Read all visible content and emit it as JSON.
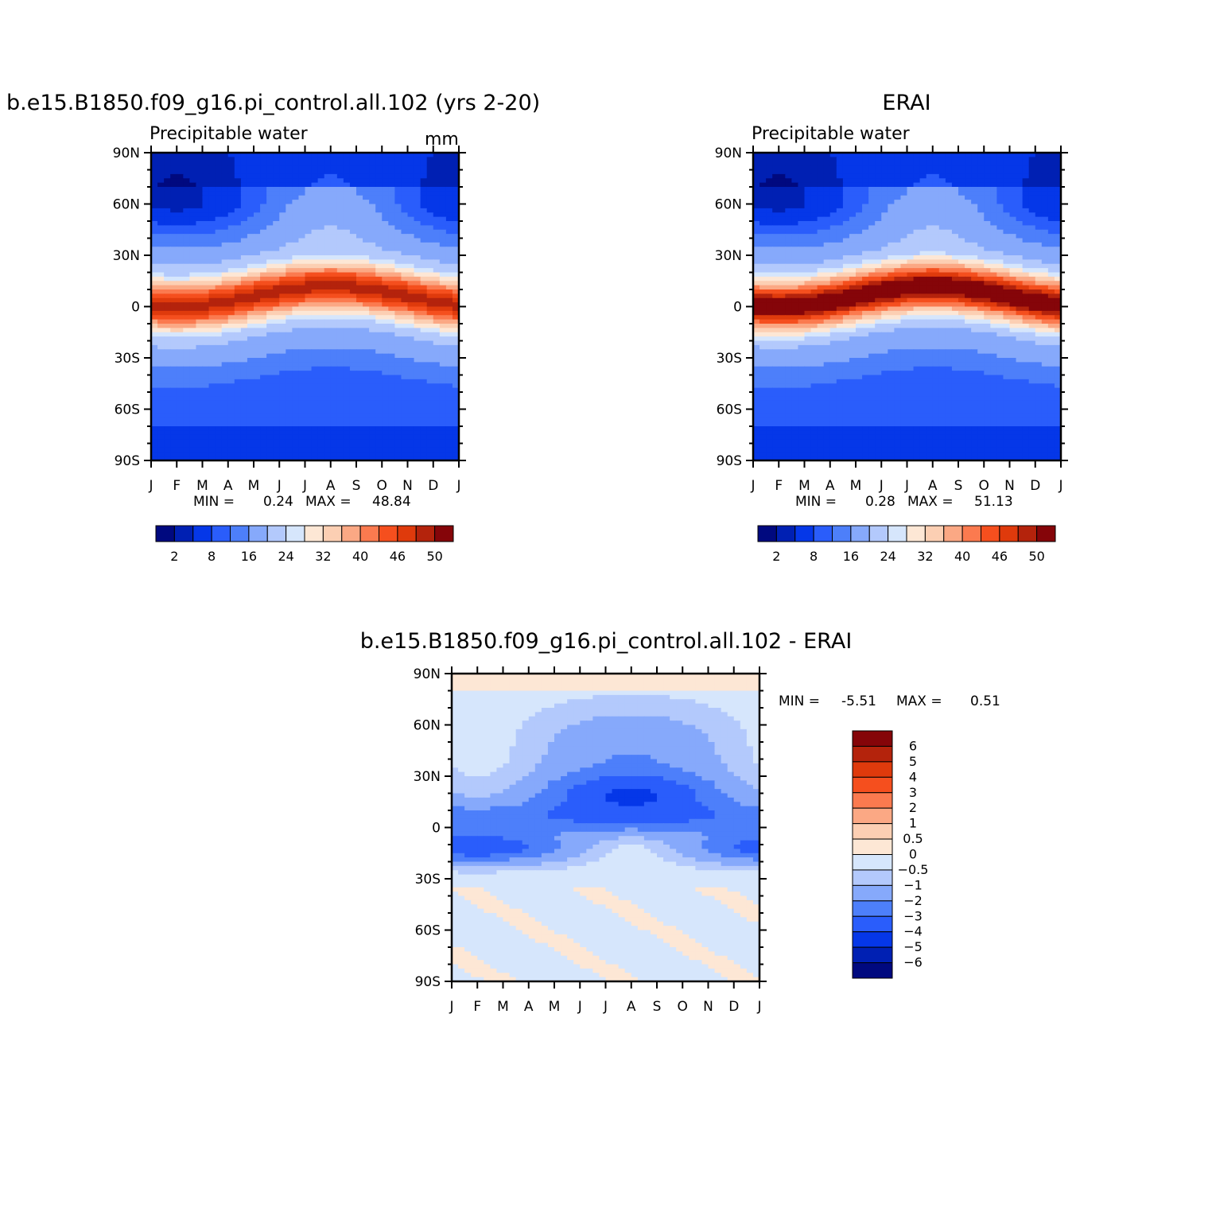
{
  "chart_data": [
    {
      "type": "heatmap",
      "title": "b.e15.B1850.f09_g16.pi_control.all.102 (yrs 2-20)",
      "subtitle": "Precipitable water",
      "units": "mm",
      "x_ticks": [
        "J",
        "F",
        "M",
        "A",
        "M",
        "J",
        "J",
        "A",
        "S",
        "O",
        "N",
        "D",
        "J"
      ],
      "y_ticks": [
        "90N",
        "60N",
        "30N",
        "0",
        "30S",
        "60S",
        "90S"
      ],
      "ylim": [
        -90,
        90
      ],
      "stats": {
        "min_label": "MIN =",
        "min": "0.24",
        "max_label": "MAX =",
        "max": "48.84"
      },
      "colorbar": {
        "levels": [
          "2",
          "8",
          "16",
          "24",
          "32",
          "40",
          "46",
          "50"
        ],
        "colors": [
          "#00097f",
          "#0020b3",
          "#0537e8",
          "#2a5dfb",
          "#4d7ffa",
          "#86a9fb",
          "#b3c9fc",
          "#d6e6fc",
          "#fde7d5",
          "#fccfb3",
          "#fba884",
          "#fb7a4f",
          "#f54f1e",
          "#df3a0c",
          "#b4230c",
          "#850509"
        ]
      },
      "field": {
        "equator_max_mm": 48.84,
        "ns_min_mm": 0.24,
        "itcz_peak_month": "Aug",
        "itcz_peak_lat": 10
      }
    },
    {
      "type": "heatmap",
      "title": "ERAI",
      "subtitle": "Precipitable water",
      "x_ticks": [
        "J",
        "F",
        "M",
        "A",
        "M",
        "J",
        "J",
        "A",
        "S",
        "O",
        "N",
        "D",
        "J"
      ],
      "y_ticks": [
        "90N",
        "60N",
        "30N",
        "0",
        "30S",
        "60S",
        "90S"
      ],
      "ylim": [
        -90,
        90
      ],
      "stats": {
        "min_label": "MIN =",
        "min": "0.28",
        "max_label": "MAX =",
        "max": "51.13"
      },
      "colorbar": {
        "levels": [
          "2",
          "8",
          "16",
          "24",
          "32",
          "40",
          "46",
          "50"
        ],
        "colors": [
          "#00097f",
          "#0020b3",
          "#0537e8",
          "#2a5dfb",
          "#4d7ffa",
          "#86a9fb",
          "#b3c9fc",
          "#d6e6fc",
          "#fde7d5",
          "#fccfb3",
          "#fba884",
          "#fb7a4f",
          "#f54f1e",
          "#df3a0c",
          "#b4230c",
          "#850509"
        ]
      },
      "field": {
        "equator_max_mm": 51.13,
        "ns_min_mm": 0.28,
        "itcz_peak_month": "Aug",
        "itcz_peak_lat": 10
      }
    },
    {
      "type": "heatmap",
      "title": "b.e15.B1850.f09_g16.pi_control.all.102 - ERAI",
      "x_ticks": [
        "J",
        "F",
        "M",
        "A",
        "M",
        "J",
        "J",
        "A",
        "S",
        "O",
        "N",
        "D",
        "J"
      ],
      "y_ticks": [
        "90N",
        "60N",
        "30N",
        "0",
        "30S",
        "60S",
        "90S"
      ],
      "ylim": [
        -90,
        90
      ],
      "stats": {
        "min_label": "MIN =",
        "min": "-5.51",
        "max_label": "MAX =",
        "max": "0.51"
      },
      "colorbar": {
        "levels": [
          "6",
          "5",
          "4",
          "3",
          "2",
          "1",
          "0.5",
          "0",
          "-0.5",
          "-1",
          "-2",
          "-3",
          "-4",
          "-5",
          "-6"
        ],
        "colors": [
          "#850509",
          "#b4230c",
          "#df3a0c",
          "#f54f1e",
          "#fb7a4f",
          "#fba884",
          "#fccfb3",
          "#fde7d5",
          "#d6e6fc",
          "#b3c9fc",
          "#86a9fb",
          "#4d7ffa",
          "#2a5dfb",
          "#0537e8",
          "#0020b3",
          "#00097f"
        ]
      },
      "field": {
        "min_diff": -5.51,
        "max_diff": 0.51
      }
    }
  ]
}
